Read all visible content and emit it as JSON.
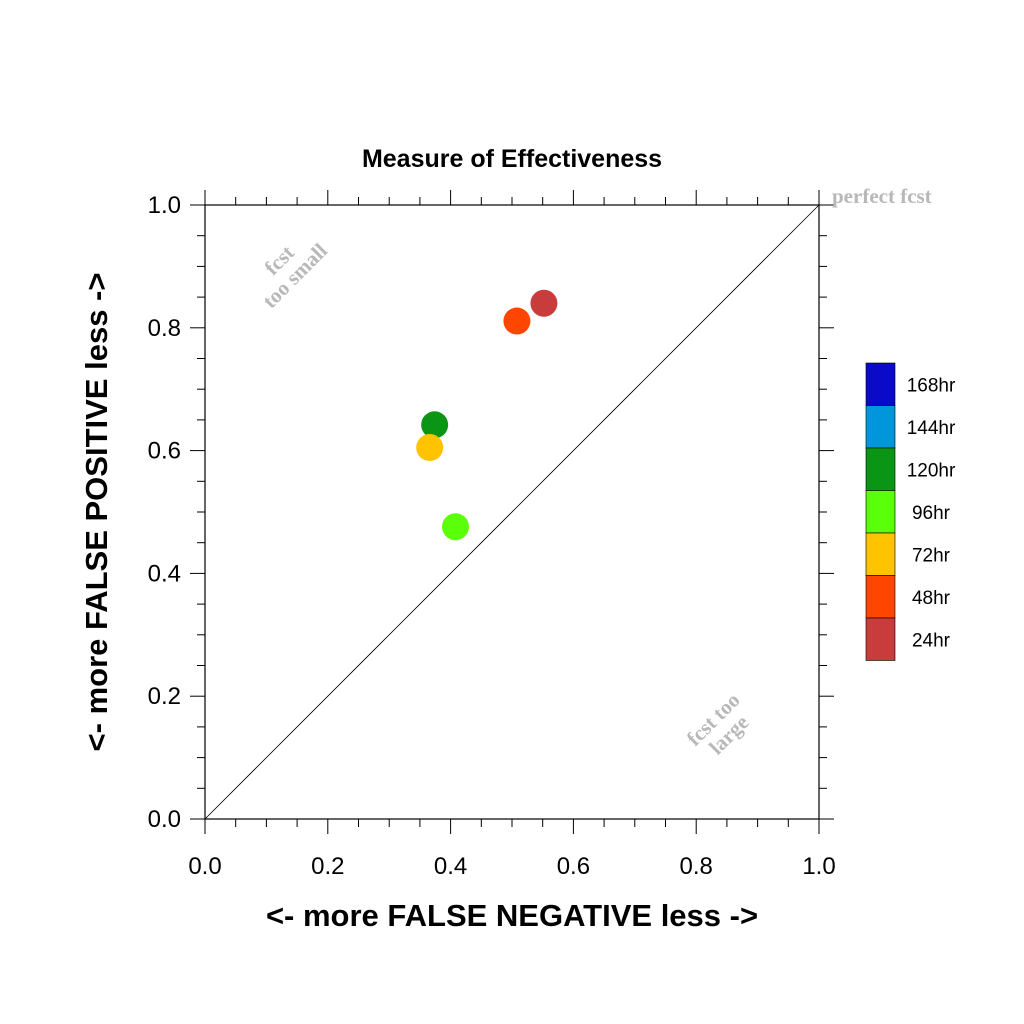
{
  "chart_data": {
    "type": "scatter",
    "title": "Measure of Effectiveness",
    "xlabel": "<- more   FALSE NEGATIVE   less ->",
    "ylabel": "<- more   FALSE POSITIVE   less ->",
    "xlim": [
      0,
      1
    ],
    "ylim": [
      0,
      1
    ],
    "xticks": [
      "0.0",
      "0.2",
      "0.4",
      "0.6",
      "0.8",
      "1.0"
    ],
    "yticks": [
      "0.0",
      "0.2",
      "0.4",
      "0.6",
      "0.8",
      "1.0"
    ],
    "grid": false,
    "diagonal_reference_line": true,
    "legend_position": "right",
    "annotations": {
      "top_right": "perfect fcst",
      "upper_left_line1": "fcst",
      "upper_left_line2": "too small",
      "lower_right_line1": "fcst too",
      "lower_right_line2": "large"
    },
    "legend": [
      {
        "label": "168hr",
        "color": "#0a0ac8"
      },
      {
        "label": "144hr",
        "color": "#0096dc"
      },
      {
        "label": "120hr",
        "color": "#0a9614"
      },
      {
        "label": "96hr",
        "color": "#5aff0a"
      },
      {
        "label": "72hr",
        "color": "#ffc300"
      },
      {
        "label": "48hr",
        "color": "#ff4600"
      },
      {
        "label": "24hr",
        "color": "#c83c3c"
      }
    ],
    "points": [
      {
        "series": "24hr",
        "x": 0.552,
        "y": 0.84,
        "color": "#c83c3c"
      },
      {
        "series": "48hr",
        "x": 0.508,
        "y": 0.811,
        "color": "#ff4600"
      },
      {
        "series": "120hr",
        "x": 0.374,
        "y": 0.642,
        "color": "#0a9614"
      },
      {
        "series": "72hr",
        "x": 0.366,
        "y": 0.605,
        "color": "#ffc300"
      },
      {
        "series": "96hr",
        "x": 0.408,
        "y": 0.476,
        "color": "#5aff0a"
      }
    ]
  }
}
